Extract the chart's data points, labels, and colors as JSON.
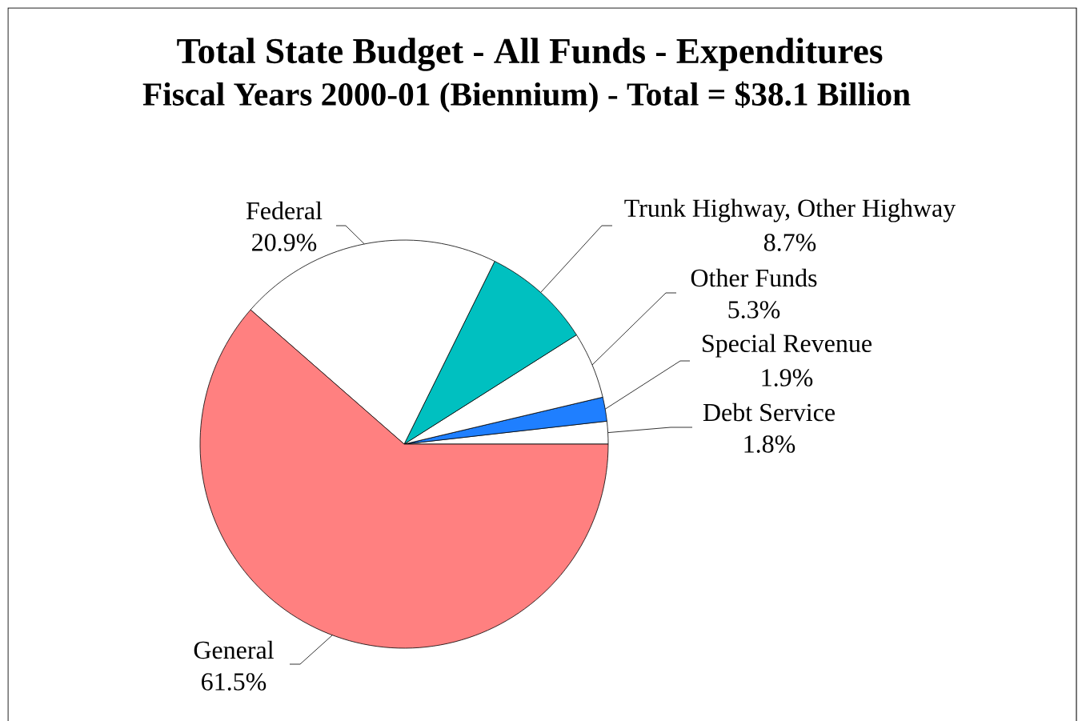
{
  "chart_data": {
    "type": "pie",
    "title": "Total State Budget - All Funds - Expenditures",
    "subtitle": "Fiscal Years 2000-01 (Biennium) - Total = $38.1 Billion",
    "categories": [
      "Debt Service",
      "Special Revenue",
      "Other Funds",
      "Trunk Highway, Other Highway",
      "Federal",
      "General"
    ],
    "values": [
      1.8,
      1.9,
      5.3,
      8.7,
      20.9,
      61.5
    ],
    "value_labels": [
      "1.8%",
      "1.9%",
      "5.3%",
      "8.7%",
      "20.9%",
      "61.5%"
    ],
    "colors": [
      "#ffffff",
      "#1f7fff",
      "#ffffff",
      "#00c0c0",
      "#ffffff",
      "#ff8080"
    ]
  }
}
